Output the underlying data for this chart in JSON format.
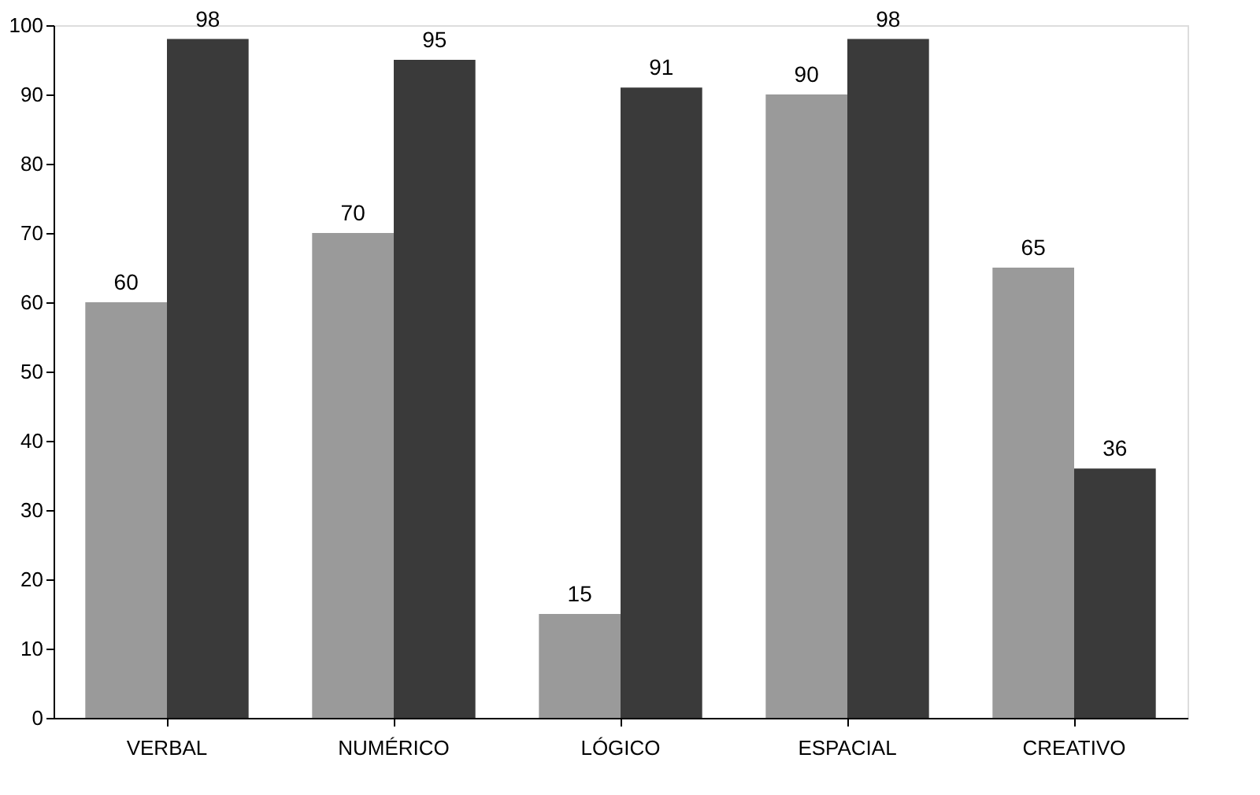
{
  "chart_data": {
    "type": "bar",
    "categories": [
      "VERBAL",
      "NUMÉRICO",
      "LÓGICO",
      "ESPACIAL",
      "CREATIVO"
    ],
    "series": [
      {
        "color": "#9a9a9a",
        "values": [
          60,
          70,
          15,
          90,
          65
        ]
      },
      {
        "color": "#3a3a3a",
        "values": [
          98,
          95,
          91,
          98,
          36
        ]
      }
    ],
    "ylim": [
      0,
      100
    ],
    "yticks": [
      0,
      10,
      20,
      30,
      40,
      50,
      60,
      70,
      80,
      90,
      100
    ],
    "grid": false,
    "legend": false,
    "data_labels": true
  }
}
